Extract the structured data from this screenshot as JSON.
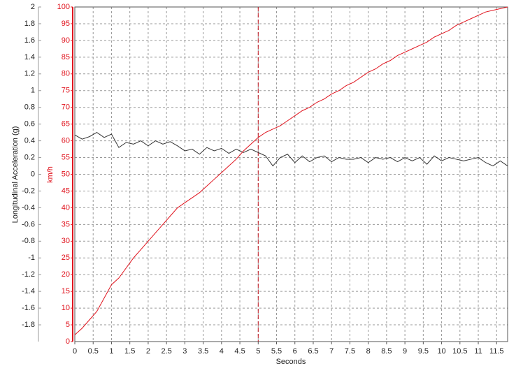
{
  "chart_data": {
    "type": "line",
    "xlabel": "Seconds",
    "ylabel": "Longitudinal Acceleration (g)",
    "y2label": "km/h",
    "x": [
      0,
      0.2,
      0.4,
      0.6,
      0.8,
      1,
      1.2,
      1.4,
      1.6,
      1.8,
      2,
      2.2,
      2.4,
      2.6,
      2.8,
      3,
      3.2,
      3.4,
      3.6,
      3.8,
      4,
      4.2,
      4.4,
      4.6,
      4.8,
      5,
      5.2,
      5.4,
      5.6,
      5.8,
      6,
      6.2,
      6.4,
      6.6,
      6.8,
      7,
      7.2,
      7.4,
      7.6,
      7.8,
      8,
      8.2,
      8.4,
      8.6,
      8.8,
      9,
      9.2,
      9.4,
      9.6,
      9.8,
      10,
      10.2,
      10.4,
      10.6,
      10.8,
      11,
      11.2,
      11.4,
      11.6,
      11.8
    ],
    "series": [
      {
        "color": "#333333",
        "axis": "y",
        "values": [
          0.47,
          0.42,
          0.45,
          0.5,
          0.44,
          0.48,
          0.32,
          0.38,
          0.36,
          0.4,
          0.34,
          0.4,
          0.36,
          0.39,
          0.34,
          0.28,
          0.3,
          0.24,
          0.32,
          0.28,
          0.31,
          0.25,
          0.3,
          0.26,
          0.3,
          0.26,
          0.22,
          0.1,
          0.2,
          0.24,
          0.14,
          0.22,
          0.15,
          0.2,
          0.22,
          0.15,
          0.2,
          0.18,
          0.18,
          0.2,
          0.14,
          0.2,
          0.18,
          0.2,
          0.15,
          0.2,
          0.16,
          0.2,
          0.12,
          0.22,
          0.16,
          0.2,
          0.18,
          0.16,
          0.18,
          0.2,
          0.14,
          0.1,
          0.16,
          0.1
        ]
      },
      {
        "color": "#e0141e",
        "axis": "y2",
        "values": [
          2,
          4,
          6.5,
          9,
          13,
          17,
          19,
          22,
          25,
          27.5,
          30,
          32.5,
          35,
          37.5,
          40,
          41.5,
          43,
          44.5,
          46.5,
          48.5,
          50.5,
          52.5,
          54.5,
          57,
          59,
          61,
          62.5,
          63.5,
          64.5,
          66,
          67.5,
          69,
          70,
          71.5,
          72.5,
          74,
          75,
          76.5,
          77.5,
          79,
          80.5,
          81.5,
          83,
          84,
          85.5,
          86.5,
          87.5,
          88.5,
          89.5,
          91,
          92,
          93,
          94.5,
          95.5,
          96.5,
          97.5,
          98.5,
          99,
          99.5,
          100
        ]
      }
    ],
    "xlim": [
      0,
      11.8
    ],
    "xticks": [
      0,
      0.5,
      1,
      1.5,
      2,
      2.5,
      3,
      3.5,
      4,
      4.5,
      5,
      5.5,
      6,
      6.5,
      7,
      7.5,
      8,
      8.5,
      9,
      9.5,
      10,
      10.5,
      11,
      11.5
    ],
    "ylim": [
      -2,
      2
    ],
    "yticks": [
      -1.8,
      -1.6,
      -1.4,
      -1.2,
      -1,
      -0.8,
      -0.6,
      -0.4,
      -0.2,
      0,
      0.2,
      0.4,
      0.6,
      0.8,
      1,
      1.2,
      1.4,
      1.6,
      1.8,
      2
    ],
    "y2lim": [
      0,
      100
    ],
    "y2ticks": [
      0,
      5,
      10,
      15,
      20,
      25,
      30,
      35,
      40,
      45,
      50,
      55,
      60,
      65,
      70,
      75,
      80,
      85,
      90,
      95,
      100
    ],
    "marker_x": 5,
    "grid": true
  }
}
